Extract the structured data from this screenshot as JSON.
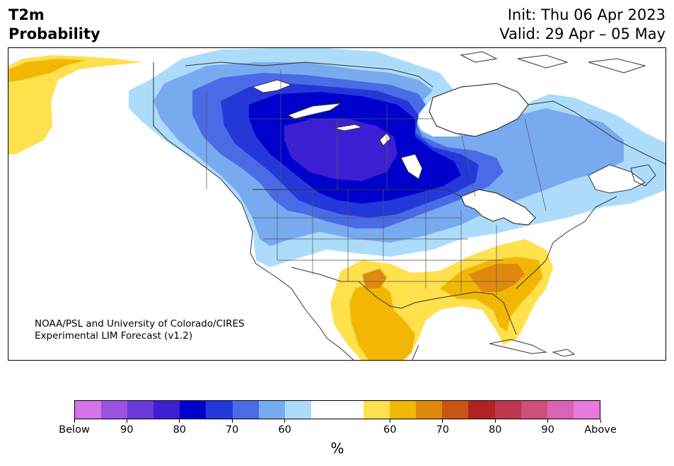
{
  "header": {
    "title_line1": "T2m",
    "title_line2": "Probability",
    "init": "Init: Thu 06 Apr 2023",
    "valid": "Valid: 29 Apr – 05 May"
  },
  "credit": {
    "line1": "NOAA/PSL and University of Colorado/CIRES",
    "line2": "Experimental LIM Forecast (v1.2)"
  },
  "colorbar": {
    "colors": [
      "#d673e8",
      "#9c52e0",
      "#6a39d8",
      "#3d1fd3",
      "#0000cc",
      "#2438da",
      "#4a6be6",
      "#78aaf0",
      "#addcfb",
      "#ffffff",
      "#ffffff",
      "#ffe04d",
      "#f2b705",
      "#df8a0e",
      "#c85415",
      "#b22222",
      "#c0364e",
      "#cf4f7c",
      "#dc63b3",
      "#e779dc"
    ],
    "ticks": [
      "Below",
      "90",
      "80",
      "70",
      "60",
      "60",
      "70",
      "80",
      "90",
      "Above"
    ],
    "unit": "%"
  },
  "map": {
    "colors": {
      "below_60": "#addcfb",
      "below_70": "#78aaf0",
      "below_75": "#4a6be6",
      "below_80": "#2438da",
      "below_85": "#0000cc",
      "below_90": "#3d1fd3",
      "above_60": "#ffe04d",
      "above_65": "#f2b705",
      "above_70": "#df8a0e",
      "land": "#ffffff",
      "water": "#ffffff",
      "border": "#333333"
    }
  }
}
